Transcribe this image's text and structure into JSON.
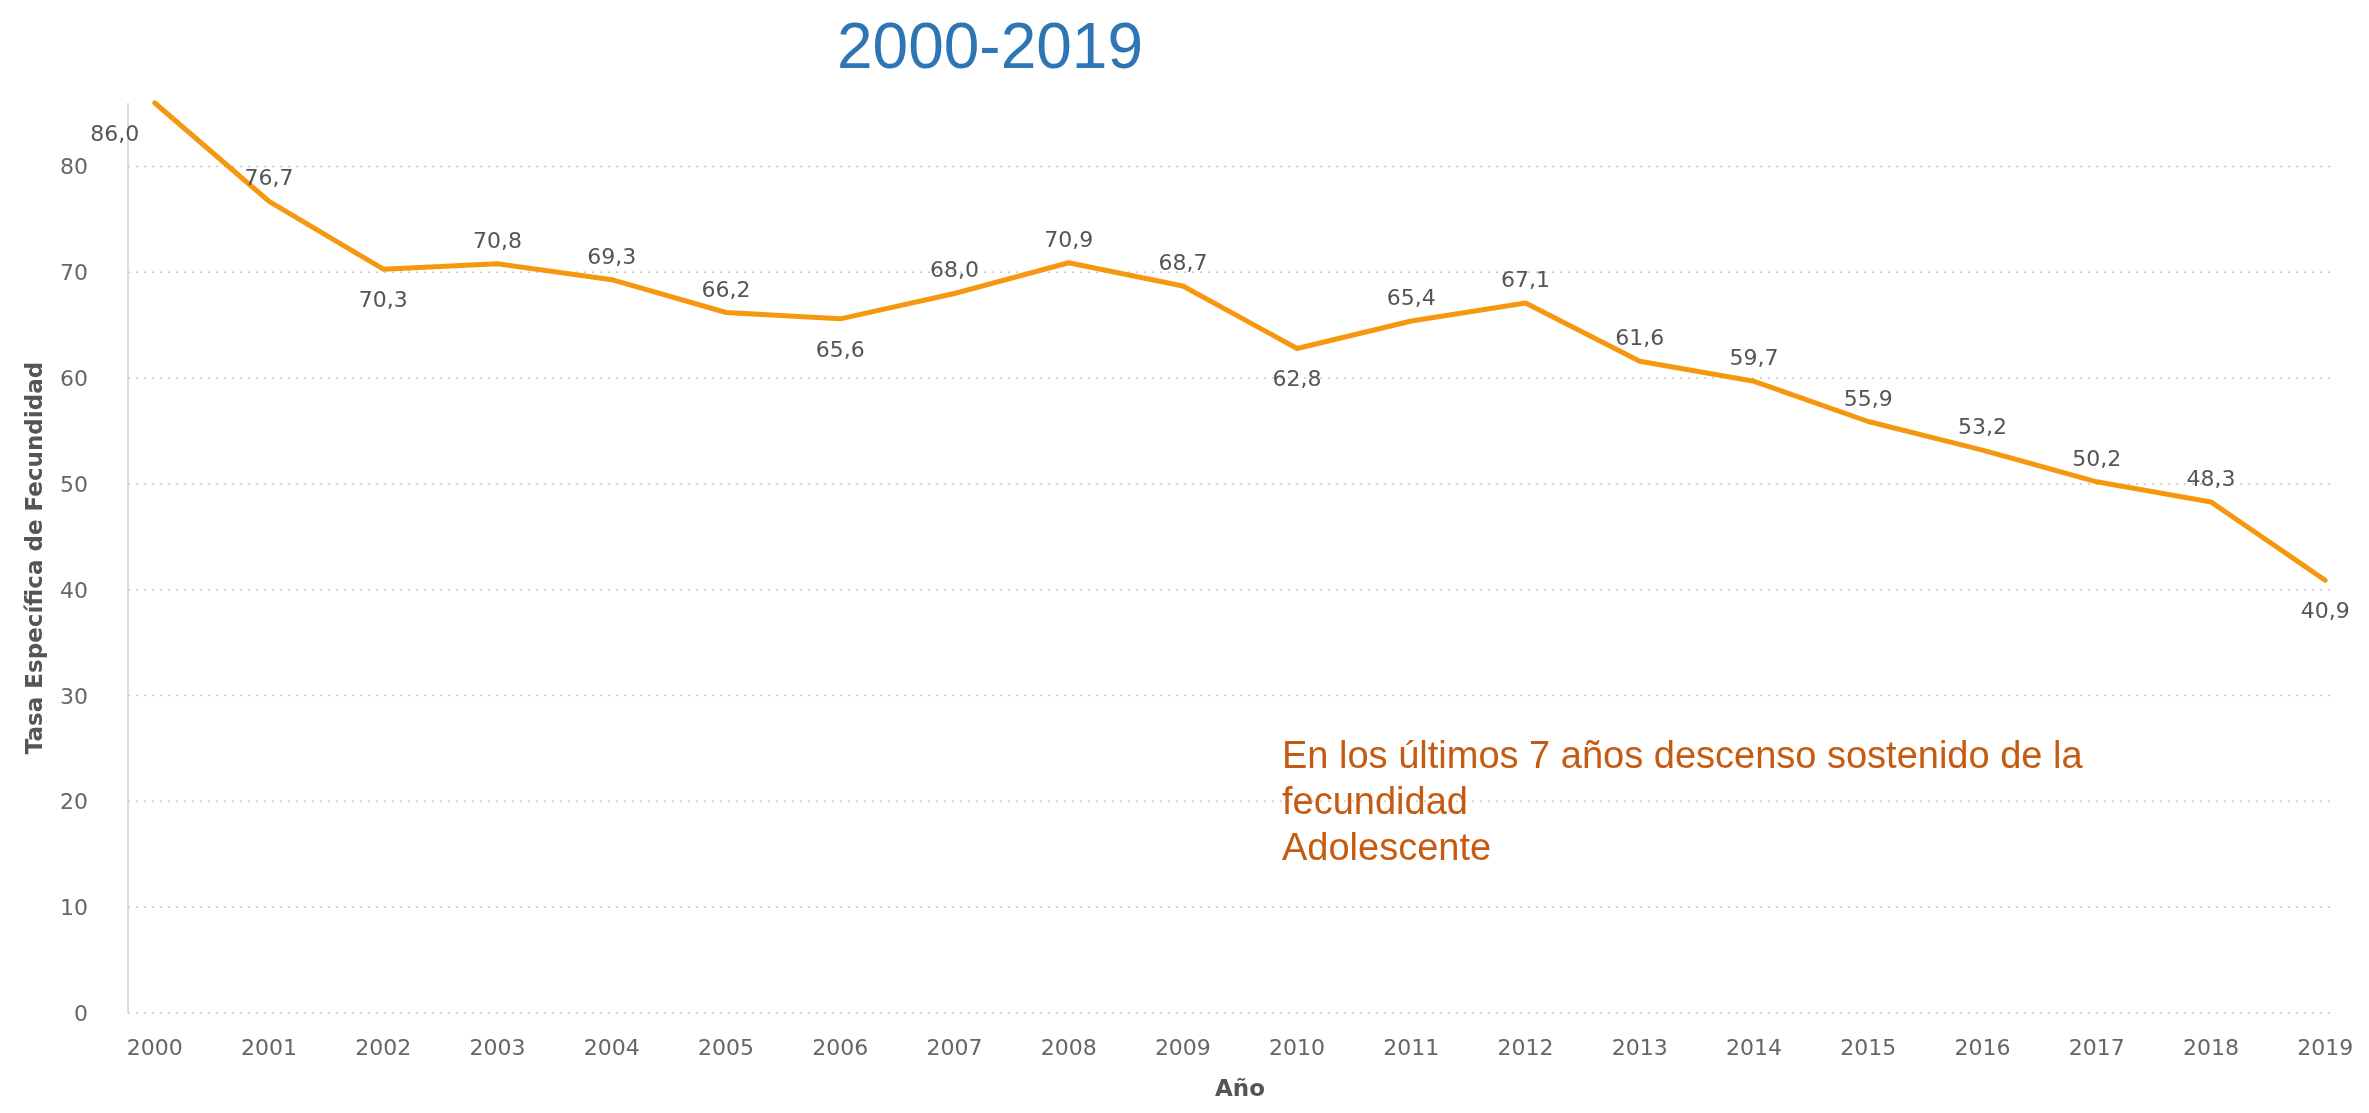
{
  "chart_data": {
    "type": "line",
    "title": "2000-2019",
    "xlabel": "Año",
    "ylabel": "Tasa Específica de Fecundidad",
    "categories": [
      "2000",
      "2001",
      "2002",
      "2003",
      "2004",
      "2005",
      "2006",
      "2007",
      "2008",
      "2009",
      "2010",
      "2011",
      "2012",
      "2013",
      "2014",
      "2015",
      "2016",
      "2017",
      "2018",
      "2019"
    ],
    "series": [
      {
        "color": "#f5980f",
        "values": [
          86.0,
          76.7,
          70.3,
          70.8,
          69.3,
          66.2,
          65.6,
          68.0,
          70.9,
          68.7,
          62.8,
          65.4,
          67.1,
          61.6,
          59.7,
          55.9,
          53.2,
          50.2,
          48.3,
          40.9
        ],
        "value_labels": [
          "86,0",
          "76,7",
          "70,3",
          "70,8",
          "69,3",
          "66,2",
          "65,6",
          "68,0",
          "70,9",
          "68,7",
          "62,8",
          "65,4",
          "67,1",
          "61,6",
          "59,7",
          "55,9",
          "53,2",
          "50,2",
          "48,3",
          "40,9"
        ]
      }
    ],
    "ylim": [
      0,
      86
    ],
    "yticks": [
      0,
      10,
      20,
      30,
      40,
      50,
      60,
      70,
      80
    ],
    "grid": "y",
    "marker": "none",
    "line_style": "solid",
    "annotations": [
      "En los últimos 7 años descenso sostenido de la\nfecundidad\nAdolescente"
    ]
  }
}
